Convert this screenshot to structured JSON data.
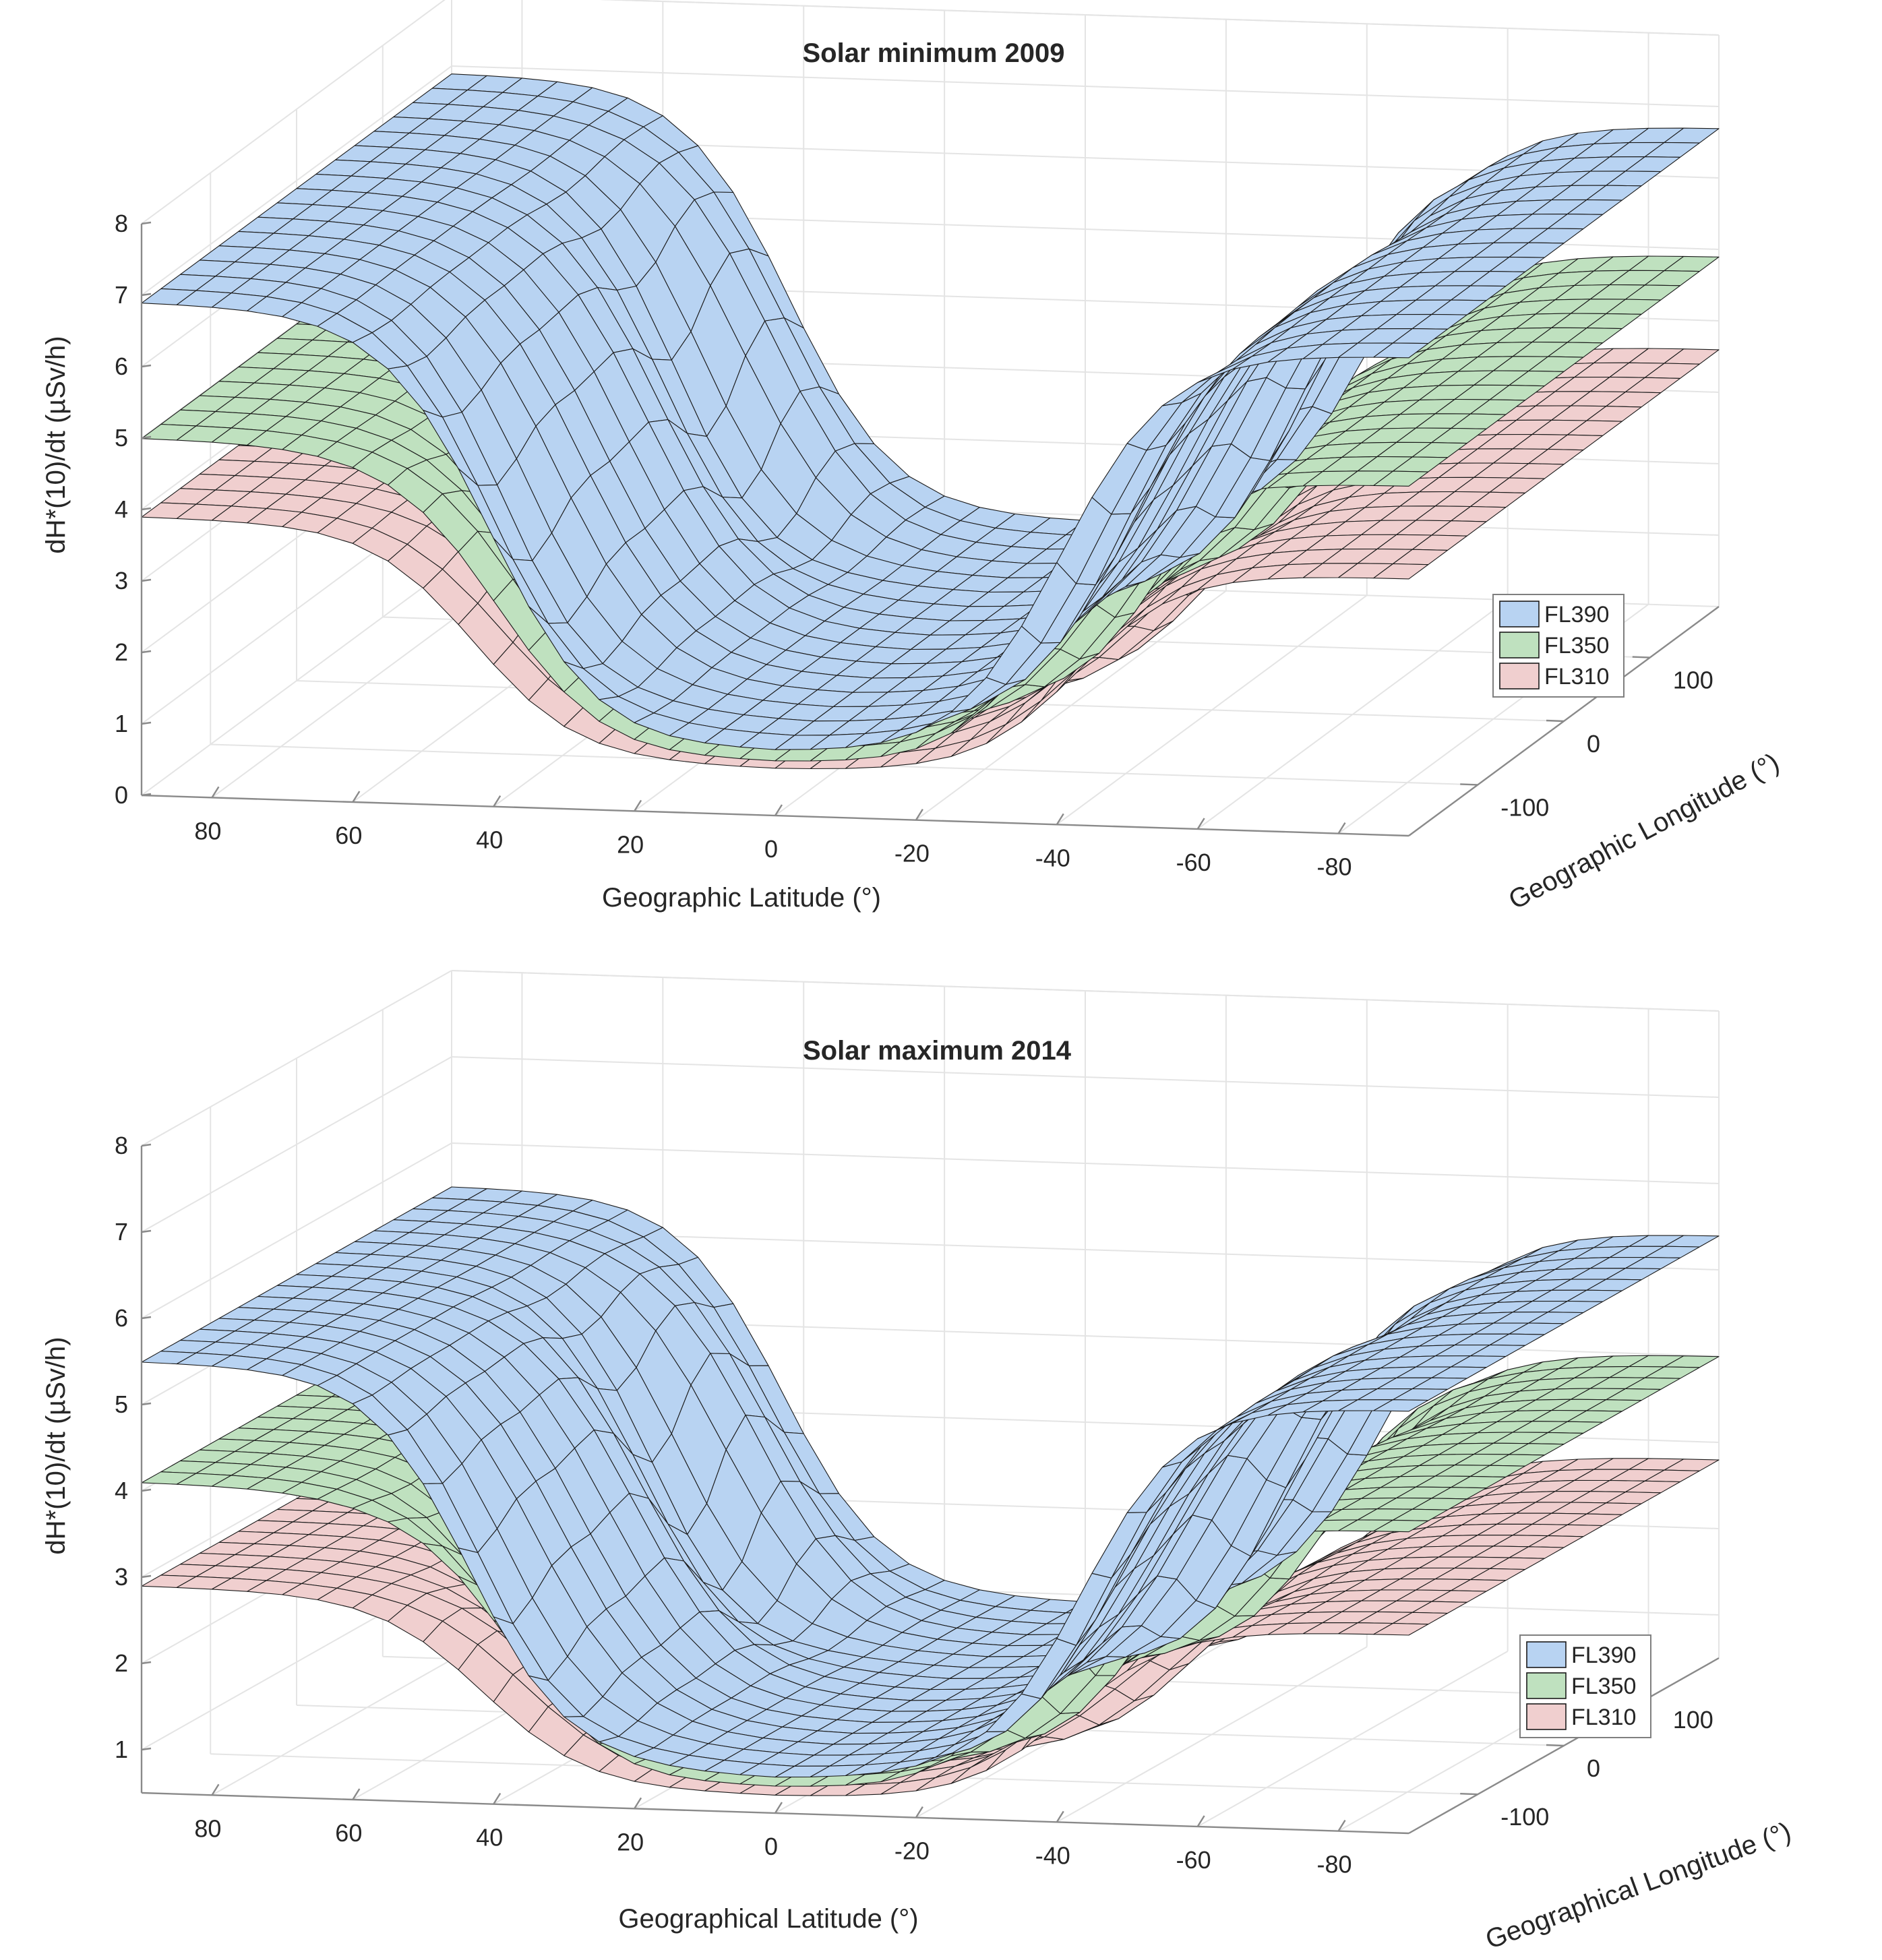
{
  "chart_data": [
    {
      "type": "surface3d",
      "title": "Solar minimum 2009",
      "zlabel": "dH*(10)/dt (µSv/h)",
      "xlabel": "Geographic Latitude (°)",
      "ylabel": "Geographic Longitude (°)",
      "zlim": [
        0,
        8
      ],
      "zticks": [
        "0",
        "1",
        "2",
        "3",
        "4",
        "5",
        "6",
        "7",
        "8"
      ],
      "xlim": [
        90,
        -90
      ],
      "xticks": [
        "80",
        "60",
        "40",
        "20",
        "0",
        "-20",
        "-40",
        "-60",
        "-80"
      ],
      "ylim": [
        -180,
        180
      ],
      "yticks": [
        "-100",
        "0",
        "100"
      ],
      "legend": {
        "position": "right",
        "entries": [
          "FL390",
          "FL350",
          "FL310"
        ]
      },
      "colors": {
        "FL390": "#b8d3f2",
        "FL350": "#bfe1bf",
        "FL310": "#f0cfcf",
        "mesh": "#1a1a1a"
      },
      "series": [
        {
          "name": "FL390",
          "polar_north": 6.9,
          "polar_south": 6.7,
          "equator": 0.9
        },
        {
          "name": "FL350",
          "polar_north": 5.0,
          "polar_south": 4.9,
          "equator": 0.75
        },
        {
          "name": "FL310",
          "polar_north": 3.9,
          "polar_south": 3.6,
          "equator": 0.65
        }
      ]
    },
    {
      "type": "surface3d",
      "title": "Solar maximum 2014",
      "zlabel": "dH*(10)/dt (µSv/h)",
      "xlabel": "Geographical Latitude (°)",
      "ylabel": "Geographical Longitude (°)",
      "zlim": [
        0.5,
        8
      ],
      "zticks": [
        "1",
        "2",
        "3",
        "4",
        "5",
        "6",
        "7",
        "8"
      ],
      "xlim": [
        90,
        -90
      ],
      "xticks": [
        "80",
        "60",
        "40",
        "20",
        "0",
        "-20",
        "-40",
        "-60",
        "-80"
      ],
      "ylim": [
        -180,
        180
      ],
      "yticks": [
        "-100",
        "0",
        "100"
      ],
      "legend": {
        "position": "right",
        "entries": [
          "FL390",
          "FL350",
          "FL310"
        ]
      },
      "colors": {
        "FL390": "#b8d3f2",
        "FL350": "#bfe1bf",
        "FL310": "#f0cfcf",
        "mesh": "#1a1a1a"
      },
      "series": [
        {
          "name": "FL390",
          "polar_north": 5.5,
          "polar_south": 5.4,
          "equator": 0.9
        },
        {
          "name": "FL350",
          "polar_north": 4.1,
          "polar_south": 4.0,
          "equator": 0.8
        },
        {
          "name": "FL310",
          "polar_north": 2.9,
          "polar_south": 2.8,
          "equator": 0.7
        }
      ]
    }
  ]
}
